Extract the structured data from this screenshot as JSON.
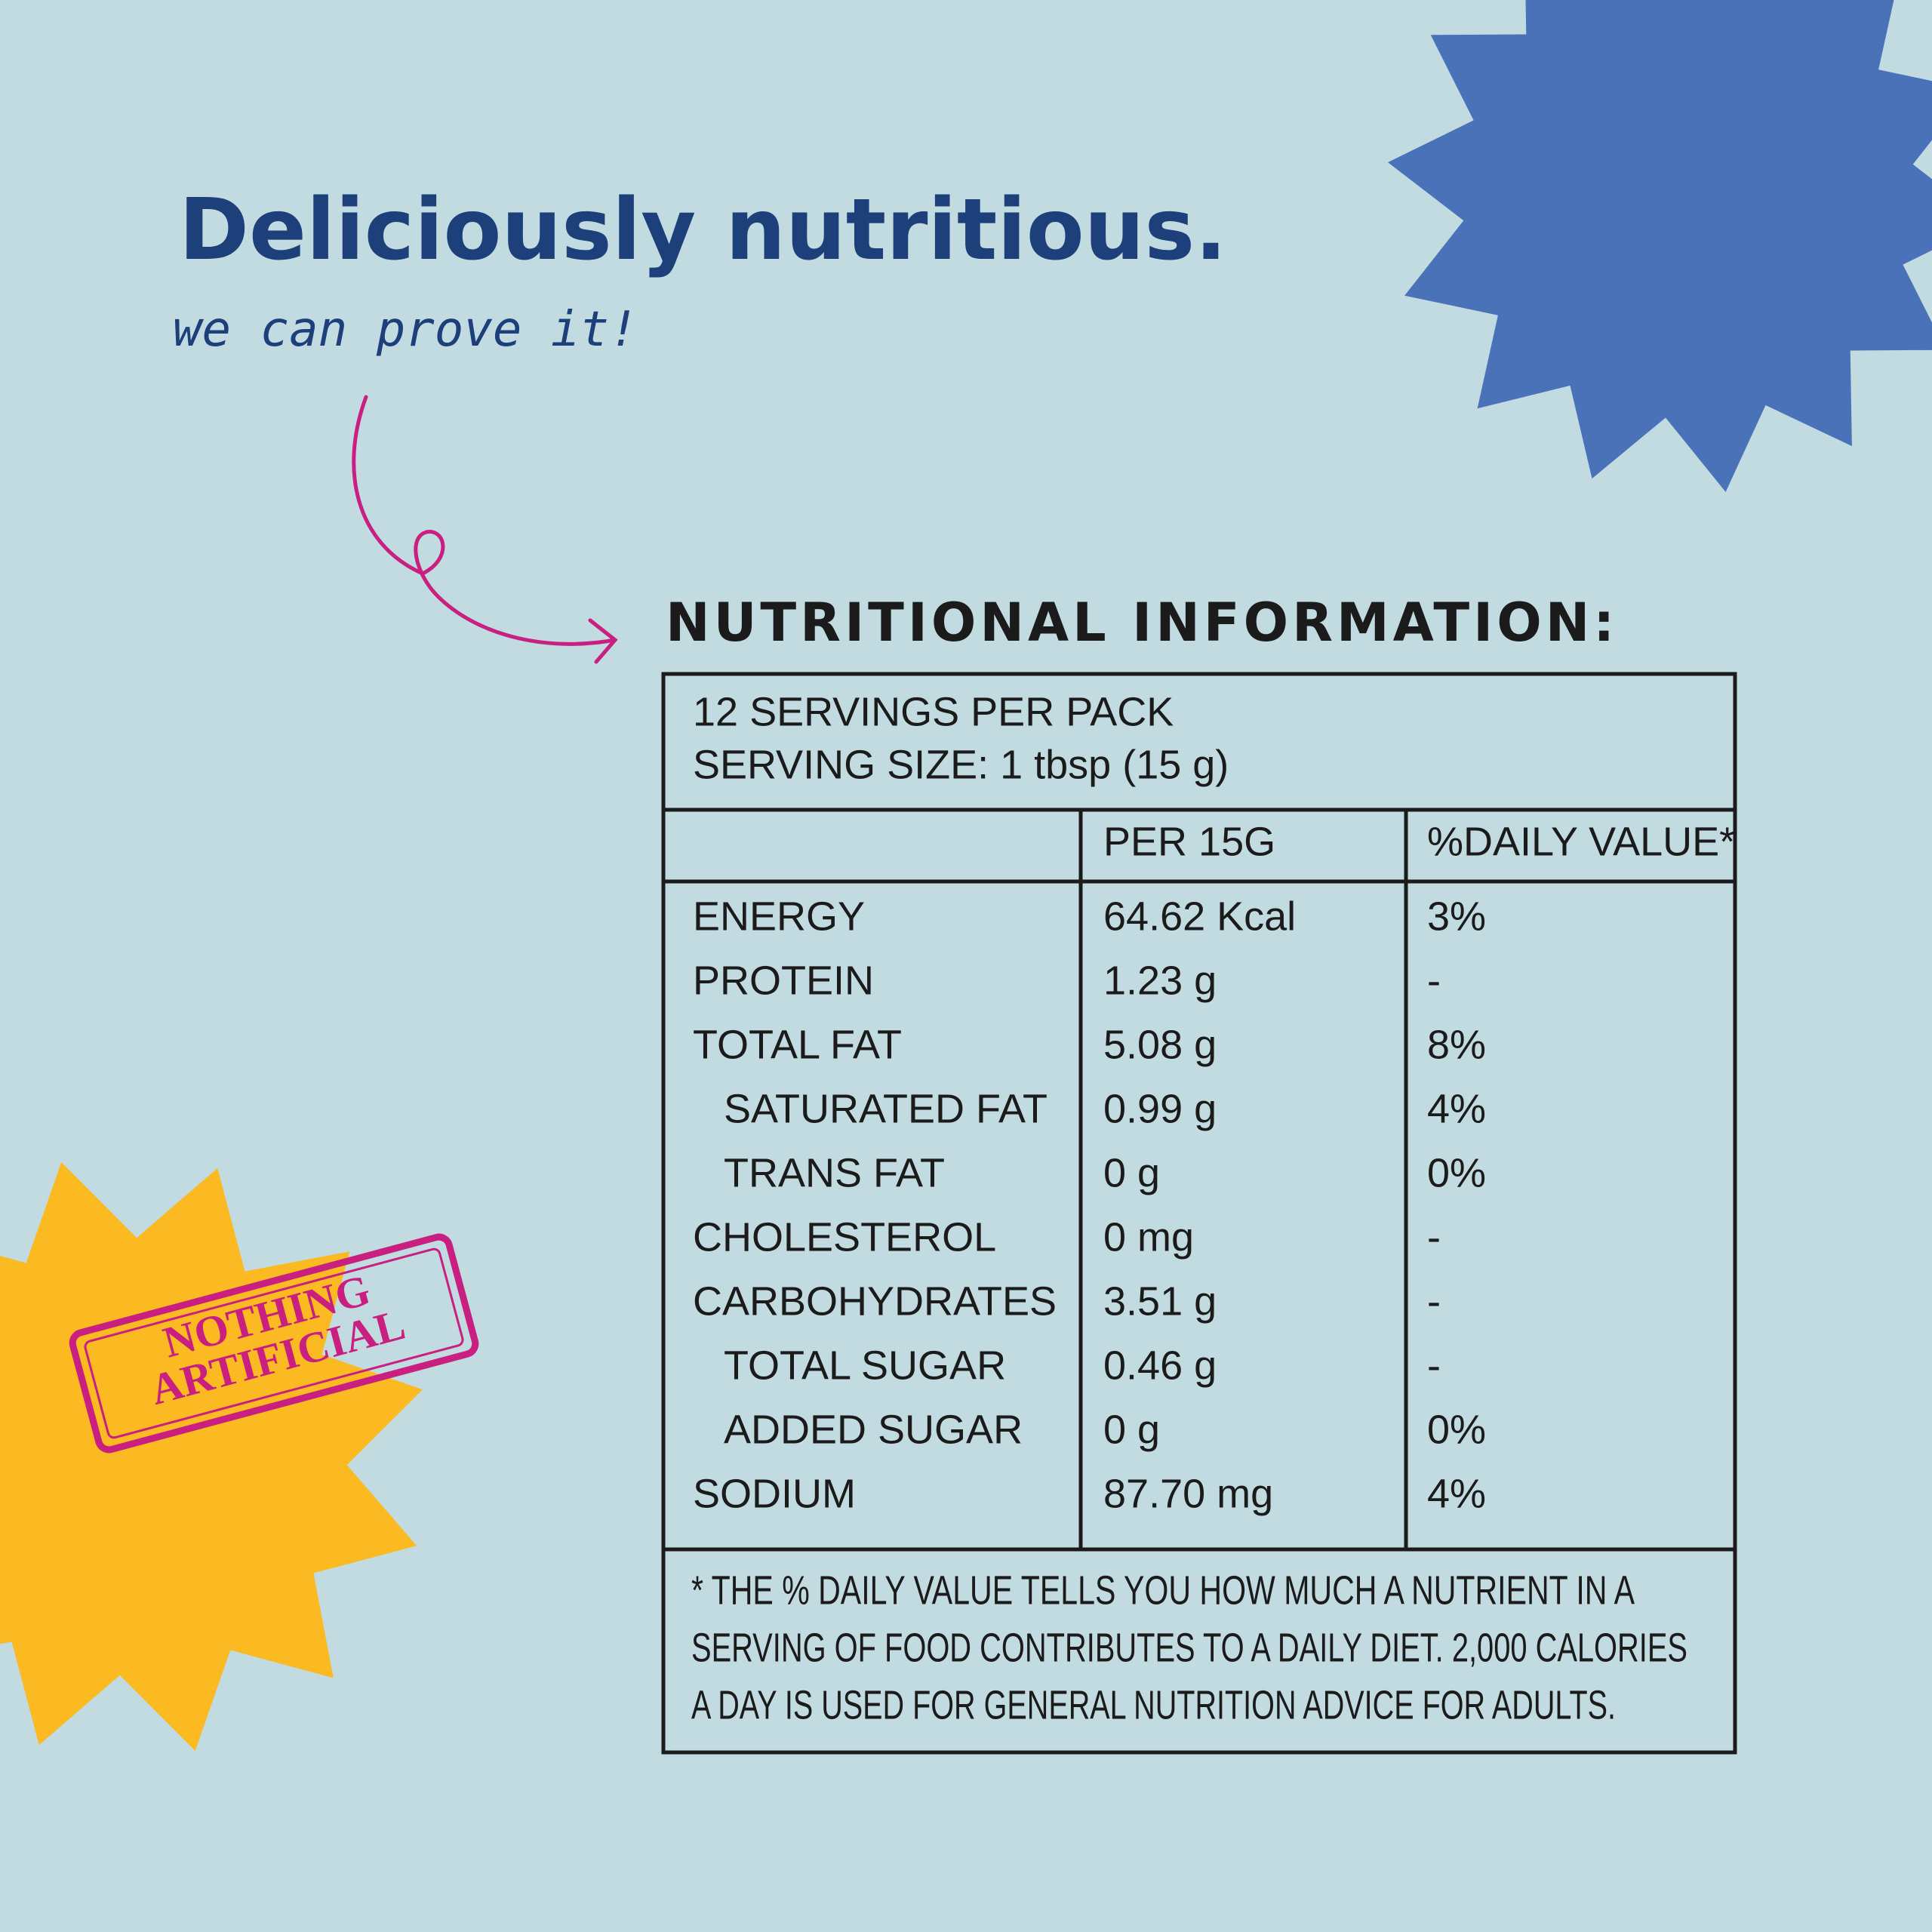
{
  "headline": "Deliciously nutritious.",
  "tagline": "we can prove it!",
  "stamp": {
    "lines": [
      "NOTHING",
      "ARTIFICIAL"
    ]
  },
  "nutrition": {
    "title": "NUTRITIONAL INFORMATION:",
    "servings": [
      "12 SERVINGS PER PACK",
      "SERVING SIZE: 1 tbsp (15 g)"
    ],
    "columns": [
      "PER 15G",
      "%DAILY VALUE*"
    ],
    "rows": [
      {
        "nutrient": "ENERGY",
        "amount": "64.62 Kcal",
        "daily_value": "3%",
        "sub": false
      },
      {
        "nutrient": "PROTEIN",
        "amount": "1.23 g",
        "daily_value": "-",
        "sub": false
      },
      {
        "nutrient": "TOTAL FAT",
        "amount": "5.08 g",
        "daily_value": "8%",
        "sub": false
      },
      {
        "nutrient": "SATURATED FAT",
        "amount": "0.99 g",
        "daily_value": "4%",
        "sub": true
      },
      {
        "nutrient": "TRANS FAT",
        "amount": "0 g",
        "daily_value": "0%",
        "sub": true
      },
      {
        "nutrient": "CHOLESTEROL",
        "amount": "0 mg",
        "daily_value": "-",
        "sub": false
      },
      {
        "nutrient": "CARBOHYDRATES",
        "amount": "3.51 g",
        "daily_value": "-",
        "sub": false
      },
      {
        "nutrient": "TOTAL SUGAR",
        "amount": "0.46 g",
        "daily_value": "-",
        "sub": true
      },
      {
        "nutrient": "ADDED SUGAR",
        "amount": "0 g",
        "daily_value": "0%",
        "sub": true
      },
      {
        "nutrient": "SODIUM",
        "amount": "87.70 mg",
        "daily_value": "4%",
        "sub": false
      }
    ],
    "footnote": [
      "* THE % DAILY VALUE TELLS YOU HOW MUCH A NUTRIENT IN A",
      "SERVING OF FOOD CONTRIBUTES TO A DAILY DIET. 2,000 CALORIES",
      "A DAY IS USED FOR GENERAL NUTRITION ADVICE FOR ADULTS."
    ]
  }
}
